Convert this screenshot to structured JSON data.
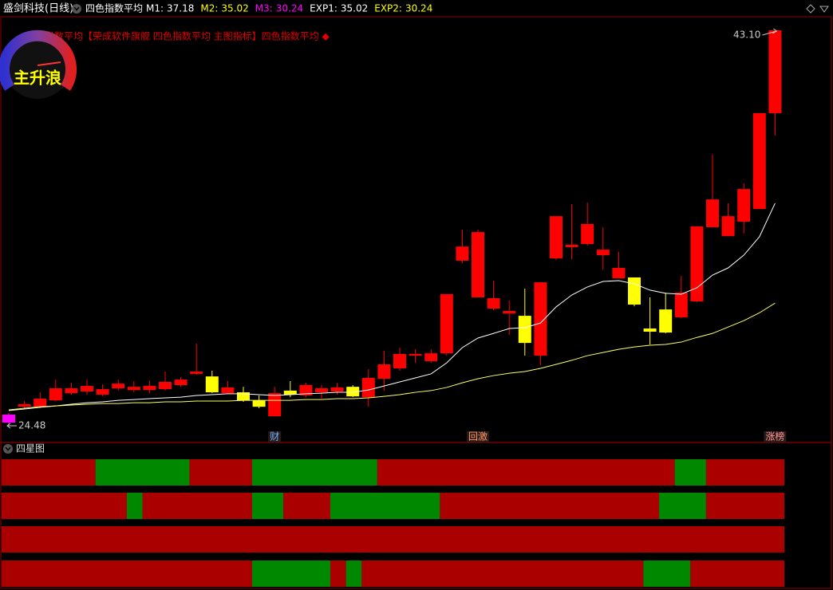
{
  "header": {
    "title": "盛剑科技(日线)",
    "indicator": "四色指数平均",
    "legend": [
      {
        "label": "M1:",
        "value": 37.18,
        "color": "#ffffff"
      },
      {
        "label": "M2:",
        "value": 35.02,
        "color": "#ffff00"
      },
      {
        "label": "M3:",
        "value": 30.24,
        "color": "#ff00ff"
      },
      {
        "label": "EXP1:",
        "value": 35.02,
        "color": "#ffffff"
      },
      {
        "label": "EXP2:",
        "value": 30.24,
        "color": "#ffff00"
      }
    ]
  },
  "indicator_text": "四色指数平均【荣成软件旗舰 四色指数平均 主图指标】四色指数平均 ◆",
  "gauge_label": "主升浪",
  "chart_data": {
    "type": "candlestick",
    "ylim": [
      24.48,
      43.1
    ],
    "open": [
      24.59,
      25.34,
      25.34,
      25.64,
      25.98,
      26.06,
      25.91,
      26.21,
      26.13,
      26.13,
      26.17,
      26.36,
      26.89,
      26.77,
      25.98,
      26.02,
      25.64,
      24.89,
      26.1,
      25.87,
      26.02,
      26.06,
      26.28,
      25.79,
      26.66,
      27.15,
      27.75,
      27.49,
      27.86,
      32.23,
      30.5,
      29.97,
      29.74,
      29.63,
      27.75,
      32.34,
      32.87,
      33.02,
      32.49,
      31.4,
      31.44,
      29.03,
      29.93,
      29.56,
      30.31,
      33.81,
      33.39,
      34.07,
      34.67,
      39.19
    ],
    "high": [
      25.04,
      25.61,
      26.02,
      26.62,
      26.47,
      26.62,
      26.4,
      26.62,
      26.55,
      26.58,
      27.0,
      26.74,
      28.32,
      27.04,
      26.55,
      26.28,
      25.87,
      26.28,
      26.55,
      26.47,
      26.36,
      26.47,
      26.36,
      27.11,
      27.98,
      28.13,
      28.05,
      28.05,
      30.65,
      33.7,
      33.7,
      31.29,
      30.35,
      30.91,
      31.21,
      34.33,
      34.9,
      34.97,
      33.81,
      32.64,
      31.44,
      30.5,
      30.72,
      31.51,
      33.85,
      37.23,
      34.94,
      35.88,
      39.19,
      43.1
    ],
    "low": [
      24.48,
      25.27,
      25.27,
      25.61,
      25.91,
      25.91,
      25.83,
      26.1,
      26.02,
      25.98,
      26.1,
      26.28,
      26.85,
      25.98,
      25.95,
      25.57,
      25.27,
      24.89,
      25.79,
      25.79,
      25.72,
      25.91,
      25.79,
      25.34,
      26.1,
      27.04,
      27.41,
      27.41,
      27.75,
      32.11,
      30.5,
      29.89,
      28.73,
      27.75,
      27.3,
      32.27,
      32.3,
      32.94,
      31.81,
      31.4,
      30.08,
      28.28,
      28.8,
      29.52,
      30.27,
      33.81,
      33.39,
      33.51,
      34.67,
      38.13
    ],
    "close": [
      24.97,
      25.46,
      25.72,
      26.21,
      26.21,
      26.32,
      26.17,
      26.43,
      26.28,
      26.32,
      26.51,
      26.62,
      27.0,
      26.02,
      26.25,
      25.64,
      25.34,
      25.98,
      25.91,
      26.36,
      26.21,
      26.25,
      25.83,
      26.7,
      27.34,
      27.83,
      27.83,
      27.86,
      30.65,
      32.9,
      33.58,
      30.46,
      29.86,
      28.35,
      31.21,
      34.33,
      32.98,
      33.96,
      32.75,
      31.89,
      30.16,
      28.88,
      28.84,
      30.72,
      33.85,
      35.12,
      34.33,
      35.61,
      39.19,
      43.1
    ],
    "colors": [
      "#ff00ff",
      "#ff0000",
      "#ff0000",
      "#ff0000",
      "#ff0000",
      "#ff0000",
      "#ff0000",
      "#ff0000",
      "#ff0000",
      "#ff0000",
      "#ff0000",
      "#ff0000",
      "#ff0000",
      "#ffff00",
      "#ff0000",
      "#ffff00",
      "#ffff00",
      "#ff0000",
      "#ffff00",
      "#ff0000",
      "#ff0000",
      "#ff0000",
      "#ffff00",
      "#ff0000",
      "#ff0000",
      "#ff0000",
      "#ff0000",
      "#ff0000",
      "#ff0000",
      "#ff0000",
      "#ff0000",
      "#ff0000",
      "#ff0000",
      "#ffff00",
      "#ff0000",
      "#ff0000",
      "#ff0000",
      "#ff0000",
      "#ff0000",
      "#ff0000",
      "#ffff00",
      "#ffff00",
      "#ffff00",
      "#ff0000",
      "#ff0000",
      "#ff0000",
      "#ff0000",
      "#ff0000",
      "#ff0000",
      "#ff0000"
    ],
    "series": [
      {
        "color": "#ffffff",
        "values": [
          25.16,
          25.23,
          25.31,
          25.38,
          25.46,
          25.53,
          25.57,
          25.64,
          25.68,
          25.72,
          25.76,
          25.79,
          25.87,
          25.91,
          25.95,
          25.95,
          25.91,
          25.87,
          25.91,
          25.95,
          25.98,
          26.02,
          26.02,
          26.13,
          26.32,
          26.51,
          26.7,
          26.89,
          27.41,
          28.13,
          28.58,
          28.8,
          29.03,
          29.07,
          29.29,
          30.05,
          30.61,
          30.99,
          31.25,
          31.29,
          31.14,
          30.84,
          30.69,
          30.65,
          30.95,
          31.55,
          31.89,
          32.49,
          33.36,
          34.94
        ]
      },
      {
        "color": "#ffff66",
        "values": [
          25.19,
          25.27,
          25.34,
          25.38,
          25.42,
          25.46,
          25.49,
          25.49,
          25.53,
          25.53,
          25.57,
          25.57,
          25.61,
          25.61,
          25.61,
          25.64,
          25.64,
          25.64,
          25.64,
          25.68,
          25.68,
          25.72,
          25.72,
          25.76,
          25.83,
          25.91,
          26.02,
          26.1,
          26.25,
          26.47,
          26.66,
          26.81,
          26.92,
          27.0,
          27.15,
          27.34,
          27.53,
          27.75,
          27.9,
          28.05,
          28.16,
          28.24,
          28.28,
          28.39,
          28.61,
          28.8,
          29.1,
          29.4,
          29.77,
          30.23
        ]
      }
    ],
    "price_labels": [
      {
        "value": 43.1,
        "label": "43.10",
        "index": 49
      },
      {
        "value": 24.48,
        "label": "24.48",
        "index": 0
      }
    ],
    "markers": [
      {
        "index": 17,
        "label": "财",
        "color": "#66b3ff"
      },
      {
        "index": 30,
        "label": "回激",
        "color": "#ff9966"
      },
      {
        "index": 49,
        "label": "涨榜",
        "color": "#ff9999"
      }
    ]
  },
  "lower_panel": {
    "title": "四星图",
    "rows": [
      {
        "segments": [
          {
            "from": 0,
            "to": 6,
            "color": "#aa0000"
          },
          {
            "from": 6,
            "to": 12,
            "color": "#008800"
          },
          {
            "from": 12,
            "to": 16,
            "color": "#aa0000"
          },
          {
            "from": 16,
            "to": 24,
            "color": "#008800"
          },
          {
            "from": 24,
            "to": 43,
            "color": "#aa0000"
          },
          {
            "from": 43,
            "to": 45,
            "color": "#008800"
          },
          {
            "from": 45,
            "to": 50,
            "color": "#aa0000"
          }
        ]
      },
      {
        "segments": [
          {
            "from": 0,
            "to": 8,
            "color": "#aa0000"
          },
          {
            "from": 8,
            "to": 9,
            "color": "#008800"
          },
          {
            "from": 9,
            "to": 16,
            "color": "#aa0000"
          },
          {
            "from": 16,
            "to": 18,
            "color": "#008800"
          },
          {
            "from": 18,
            "to": 21,
            "color": "#aa0000"
          },
          {
            "from": 21,
            "to": 28,
            "color": "#008800"
          },
          {
            "from": 28,
            "to": 42,
            "color": "#aa0000"
          },
          {
            "from": 42,
            "to": 45,
            "color": "#008800"
          },
          {
            "from": 45,
            "to": 50,
            "color": "#aa0000"
          }
        ]
      },
      {
        "segments": [
          {
            "from": 0,
            "to": 50,
            "color": "#aa0000"
          }
        ]
      },
      {
        "segments": [
          {
            "from": 0,
            "to": 16,
            "color": "#aa0000"
          },
          {
            "from": 16,
            "to": 21,
            "color": "#008800"
          },
          {
            "from": 21,
            "to": 22,
            "color": "#aa0000"
          },
          {
            "from": 22,
            "to": 23,
            "color": "#008800"
          },
          {
            "from": 23,
            "to": 41,
            "color": "#aa0000"
          },
          {
            "from": 41,
            "to": 44,
            "color": "#008800"
          },
          {
            "from": 44,
            "to": 50,
            "color": "#aa0000"
          }
        ]
      }
    ]
  }
}
